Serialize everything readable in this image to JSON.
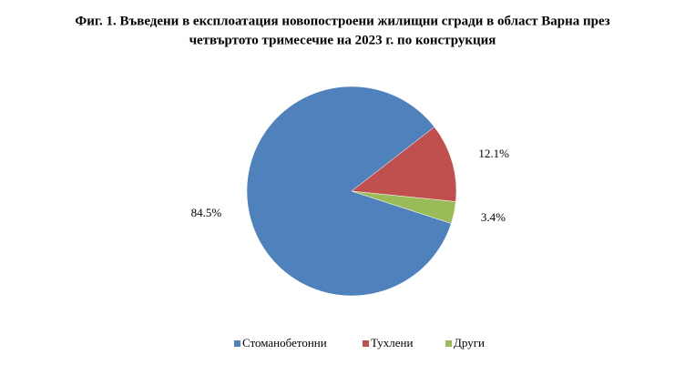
{
  "chart_data": {
    "type": "pie",
    "title": [
      "Фиг. 1. Въведени в експлоатация новопостроени жилищни сгради в област Варна през",
      "четвъртото тримесечие на 2023 г. по конструкция"
    ],
    "categories": [
      "Стоманобетонни",
      "Тухлени",
      "Други"
    ],
    "values": [
      84.5,
      12.1,
      3.4
    ],
    "value_labels": [
      "84.5%",
      "12.1%",
      "3.4%"
    ],
    "colors": [
      "#4f81bd",
      "#c0504d",
      "#9bbb59"
    ],
    "legend": "bottom"
  }
}
